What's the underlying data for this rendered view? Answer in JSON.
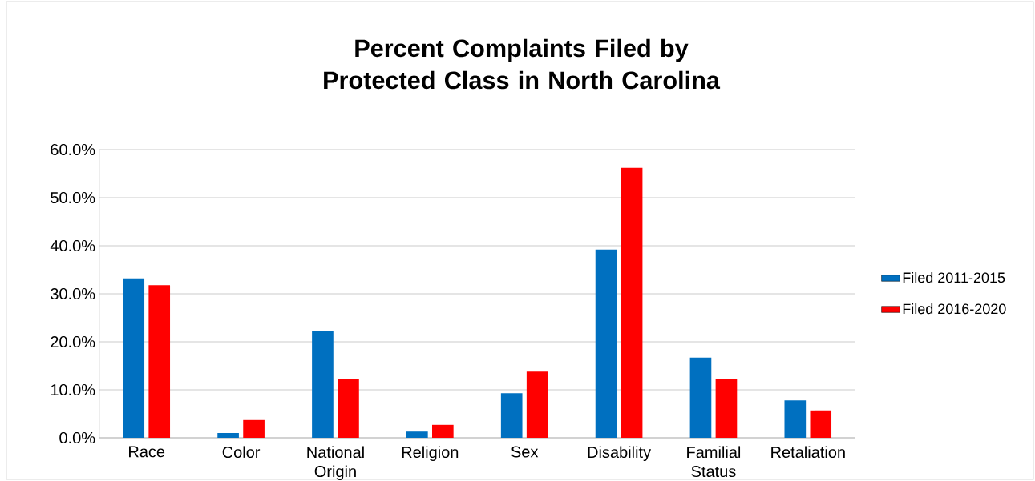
{
  "chart_data": {
    "type": "bar",
    "title": "Percent Complaints Filed by Protected Class in North Carolina",
    "categories": [
      "Race",
      "Color",
      "National Origin",
      "Religion",
      "Sex",
      "Disability",
      "Familial Status",
      "Retaliation"
    ],
    "series": [
      {
        "name": "Filed 2011-2015",
        "color": "#0070c0",
        "values": [
          33.2,
          1.0,
          22.3,
          1.3,
          9.3,
          39.2,
          16.7,
          7.8
        ]
      },
      {
        "name": "Filed 2016-2020",
        "color": "#ff0000",
        "values": [
          31.8,
          3.7,
          12.3,
          2.7,
          13.8,
          56.2,
          12.3,
          5.7
        ]
      }
    ],
    "ylim": [
      0,
      60
    ],
    "yticks": [
      {
        "value": 0,
        "label": "0.0%"
      },
      {
        "value": 10,
        "label": "10.0%"
      },
      {
        "value": 20,
        "label": "20.0%"
      },
      {
        "value": 30,
        "label": "30.0%"
      },
      {
        "value": 40,
        "label": "40.0%"
      },
      {
        "value": 50,
        "label": "50.0%"
      },
      {
        "value": 60,
        "label": "60.0%"
      }
    ],
    "grid": "y",
    "legend": "right"
  }
}
